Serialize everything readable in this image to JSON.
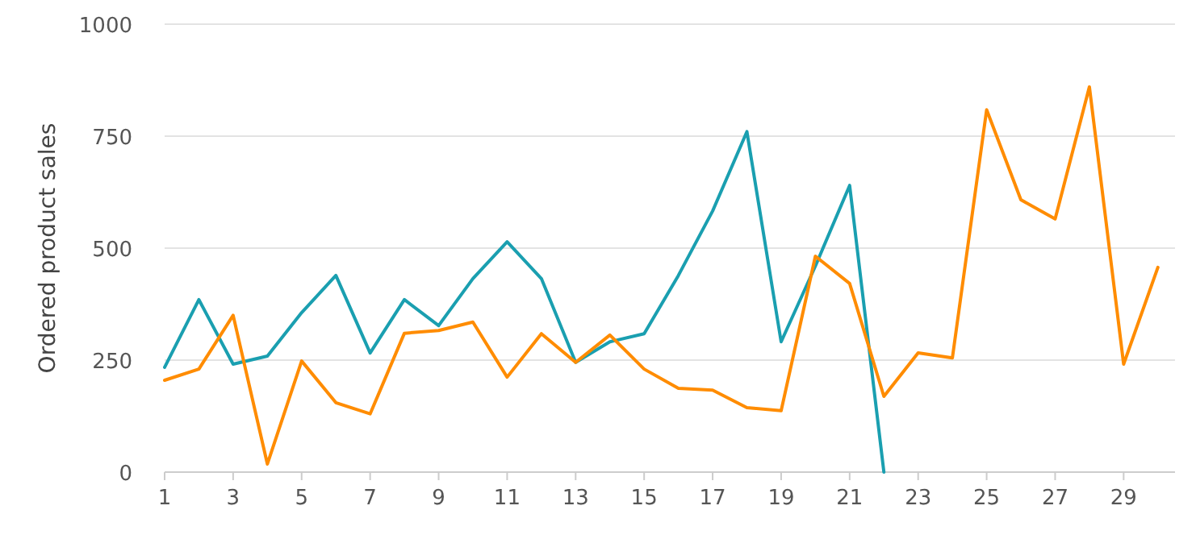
{
  "chart_data": {
    "type": "line",
    "ylabel": "Ordered product sales",
    "x": [
      1,
      2,
      3,
      4,
      5,
      6,
      7,
      8,
      9,
      10,
      11,
      12,
      13,
      14,
      15,
      16,
      17,
      18,
      19,
      20,
      21,
      22,
      23,
      24,
      25,
      26,
      27,
      28,
      29,
      30
    ],
    "series": [
      {
        "color": "#1a9fb0",
        "x": [
          1,
          2,
          3,
          4,
          5,
          6,
          7,
          8,
          9,
          10,
          11,
          12,
          13,
          14,
          15,
          16,
          17,
          18,
          19,
          20,
          21,
          22
        ],
        "values": [
          234,
          385,
          241,
          259,
          356,
          439,
          266,
          385,
          327,
          432,
          514,
          432,
          245,
          291,
          309,
          439,
          583,
          760,
          291,
          460,
          640,
          0
        ]
      },
      {
        "color": "#ff8c00",
        "values": [
          205,
          230,
          350,
          18,
          248,
          155,
          130,
          310,
          316,
          335,
          212,
          309,
          245,
          306,
          230,
          187,
          183,
          144,
          137,
          482,
          421,
          169,
          266,
          255,
          809,
          608,
          565,
          860,
          241,
          457
        ]
      }
    ],
    "xlim": [
      1,
      30.5
    ],
    "xticks": [
      1,
      3,
      5,
      7,
      9,
      11,
      13,
      15,
      17,
      19,
      21,
      23,
      25,
      27,
      29
    ],
    "ylim": [
      0,
      1000
    ],
    "yticks": [
      0,
      250,
      500,
      750,
      1000
    ],
    "grid": "y"
  }
}
